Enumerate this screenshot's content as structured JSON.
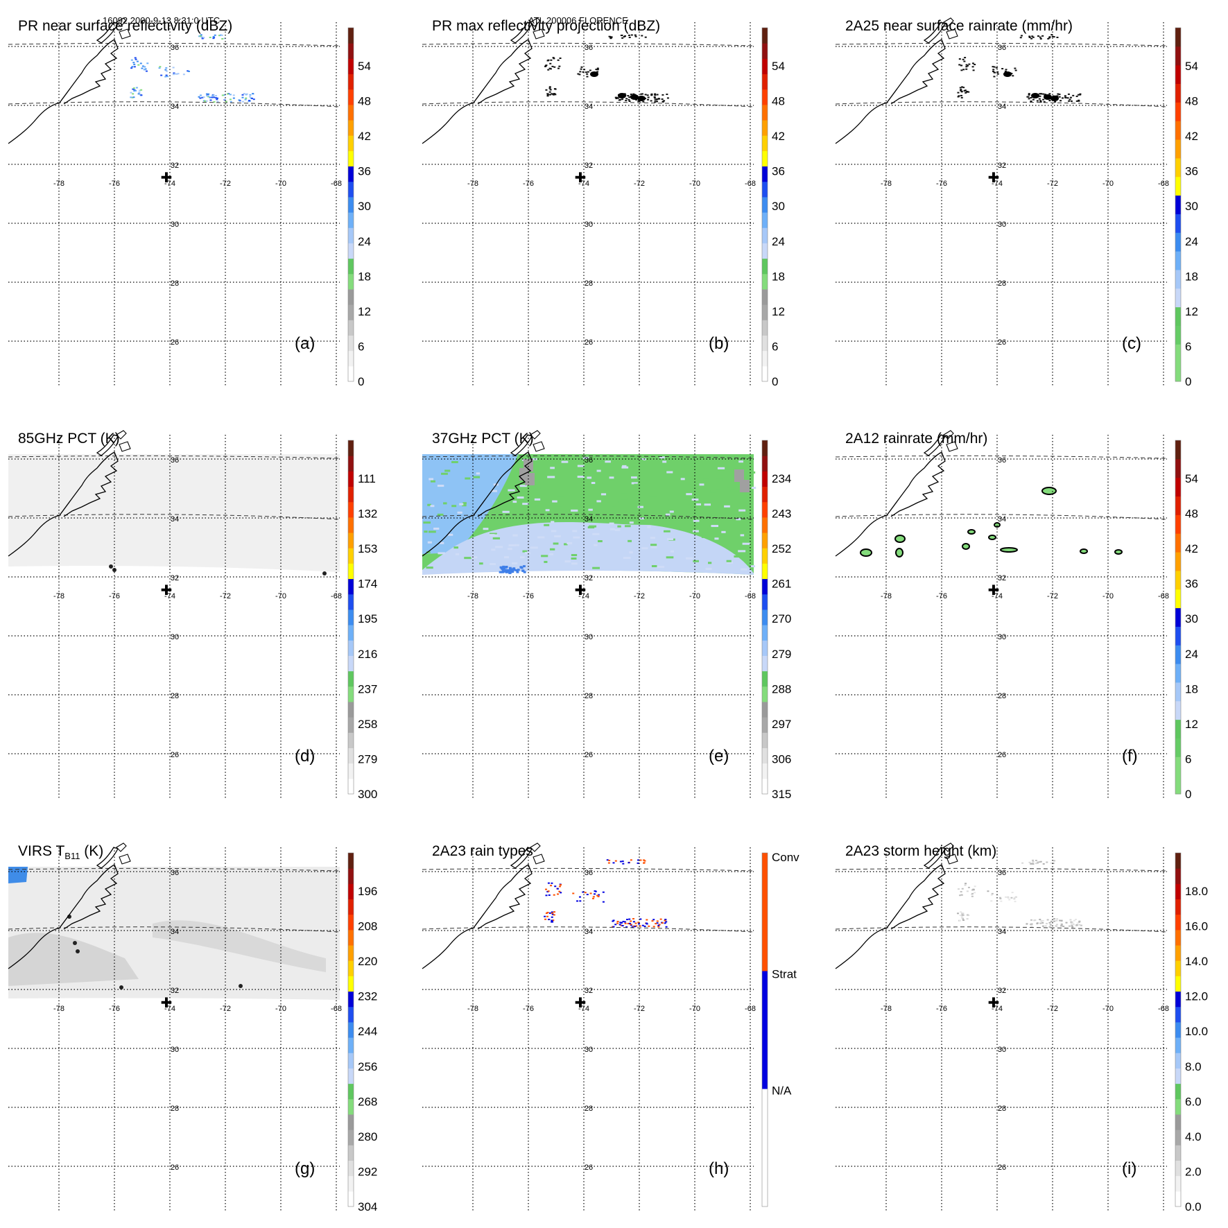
{
  "header": {
    "orbit_time": "16092 2000-9-13 8:31:0 UTC",
    "storm": "ATL 200006 FLORENCE"
  },
  "map": {
    "lon_labels": [
      "-78",
      "-76",
      "-74",
      "-72",
      "-70",
      "-68"
    ],
    "lat_labels": [
      "36",
      "34",
      "32",
      "30",
      "28",
      "26"
    ]
  },
  "panels": [
    {
      "id": "a",
      "title": "PR near surface reflectivity (dBZ)",
      "label": "(a)",
      "field": "pr",
      "colorbar": {
        "ticks": [
          "54",
          "48",
          "42",
          "36",
          "30",
          "24",
          "18",
          "12",
          "6",
          "0"
        ],
        "colors": [
          "#ffffff",
          "#f2f2f2",
          "#e0e0e0",
          "#c8c8c8",
          "#a8a8a8",
          "#9a9a9a",
          "#84dc7c",
          "#5fc75f",
          "#c8d8f8",
          "#a6c8f8",
          "#6eb0f8",
          "#3c8cf0",
          "#1e4ef0",
          "#0000d8",
          "#ffff00",
          "#ffd000",
          "#ffa000",
          "#ff7000",
          "#ff4000",
          "#e02000",
          "#c00000",
          "#901010",
          "#602010"
        ]
      }
    },
    {
      "id": "b",
      "title": "PR max reflectivity projection (dBZ)",
      "label": "(b)",
      "field": "prmax",
      "colorbar": {
        "ticks": [
          "54",
          "48",
          "42",
          "36",
          "30",
          "24",
          "18",
          "12",
          "6",
          "0"
        ],
        "colors": [
          "#ffffff",
          "#f2f2f2",
          "#e0e0e0",
          "#c8c8c8",
          "#a8a8a8",
          "#9a9a9a",
          "#84dc7c",
          "#5fc75f",
          "#c8d8f8",
          "#a6c8f8",
          "#6eb0f8",
          "#3c8cf0",
          "#1e4ef0",
          "#0000d8",
          "#ffff00",
          "#ffd000",
          "#ffa000",
          "#ff7000",
          "#ff4000",
          "#e02000",
          "#c00000",
          "#901010",
          "#602010"
        ]
      }
    },
    {
      "id": "c",
      "title": "2A25 near surface rainrate (mm/hr)",
      "label": "(c)",
      "field": "rain",
      "colorbar": {
        "ticks": [
          "54",
          "48",
          "42",
          "36",
          "30",
          "24",
          "18",
          "12",
          "6",
          "0"
        ],
        "colors": [
          "#84dc7c",
          "#84dc7c",
          "#66cc66",
          "#5fc75f",
          "#c8d8f8",
          "#a6c8f8",
          "#6eb0f8",
          "#3c8cf0",
          "#1e4ef0",
          "#0000d8",
          "#ffff00",
          "#ffd000",
          "#ffa000",
          "#ff7000",
          "#ff4000",
          "#e02000",
          "#c00000",
          "#901010",
          "#602010"
        ]
      }
    },
    {
      "id": "d",
      "title": "85GHz PCT (K)",
      "label": "(d)",
      "field": "pct85",
      "colorbar": {
        "ticks": [
          "111",
          "132",
          "153",
          "174",
          "195",
          "216",
          "237",
          "258",
          "279",
          "300"
        ],
        "colors": [
          "#ffffff",
          "#f2f2f2",
          "#e0e0e0",
          "#c8c8c8",
          "#a8a8a8",
          "#9a9a9a",
          "#84dc7c",
          "#5fc75f",
          "#c8d8f8",
          "#a6c8f8",
          "#6eb0f8",
          "#3c8cf0",
          "#1e4ef0",
          "#0000d8",
          "#ffff00",
          "#ffd000",
          "#ffa000",
          "#ff7000",
          "#ff4000",
          "#e02000",
          "#c00000",
          "#901010",
          "#602010"
        ]
      }
    },
    {
      "id": "e",
      "title": "37GHz PCT (K)",
      "label": "(e)",
      "field": "pct37",
      "colorbar": {
        "ticks": [
          "234",
          "243",
          "252",
          "261",
          "270",
          "279",
          "288",
          "297",
          "306",
          "315"
        ],
        "colors": [
          "#ffffff",
          "#f2f2f2",
          "#e0e0e0",
          "#c8c8c8",
          "#a8a8a8",
          "#9a9a9a",
          "#84dc7c",
          "#5fc75f",
          "#c8d8f8",
          "#a6c8f8",
          "#6eb0f8",
          "#3c8cf0",
          "#1e4ef0",
          "#0000d8",
          "#ffff00",
          "#ffd000",
          "#ffa000",
          "#ff7000",
          "#ff4000",
          "#e02000",
          "#c00000",
          "#901010",
          "#602010"
        ]
      }
    },
    {
      "id": "f",
      "title": "2A12 rainrate (mm/hr)",
      "label": "(f)",
      "field": "rain12",
      "colorbar": {
        "ticks": [
          "54",
          "48",
          "42",
          "36",
          "30",
          "24",
          "18",
          "12",
          "6",
          "0"
        ],
        "colors": [
          "#84dc7c",
          "#84dc7c",
          "#66cc66",
          "#5fc75f",
          "#c8d8f8",
          "#a6c8f8",
          "#6eb0f8",
          "#3c8cf0",
          "#1e4ef0",
          "#0000d8",
          "#ffff00",
          "#ffd000",
          "#ffa000",
          "#ff7000",
          "#ff4000",
          "#e02000",
          "#c00000",
          "#901010",
          "#602010"
        ]
      }
    },
    {
      "id": "g",
      "title_main": "VIRS T",
      "title_sub": "B11",
      "title_unit": " (K)",
      "label": "(g)",
      "field": "virs",
      "colorbar": {
        "ticks": [
          "196",
          "208",
          "220",
          "232",
          "244",
          "256",
          "268",
          "280",
          "292",
          "304"
        ],
        "colors": [
          "#ffffff",
          "#f2f2f2",
          "#e0e0e0",
          "#c8c8c8",
          "#a8a8a8",
          "#9a9a9a",
          "#84dc7c",
          "#5fc75f",
          "#c8d8f8",
          "#a6c8f8",
          "#6eb0f8",
          "#3c8cf0",
          "#1e4ef0",
          "#0000d8",
          "#ffff00",
          "#ffd000",
          "#ffa000",
          "#ff7000",
          "#ff4000",
          "#e02000",
          "#c00000",
          "#901010",
          "#602010"
        ]
      }
    },
    {
      "id": "h",
      "title": "2A23 rain types",
      "label": "(h)",
      "field": "types",
      "colorbar": {
        "ticks": [
          "Conv",
          "Strat",
          "N/A"
        ],
        "colors": [
          "#ffffff",
          "#0000e0",
          "#ff5000"
        ]
      }
    },
    {
      "id": "i",
      "title": "2A23 storm height (km)",
      "label": "(i)",
      "field": "height",
      "colorbar": {
        "ticks": [
          "18.0",
          "16.0",
          "14.0",
          "12.0",
          "10.0",
          "8.0",
          "6.0",
          "4.0",
          "2.0",
          "0.0"
        ],
        "colors": [
          "#ffffff",
          "#f2f2f2",
          "#e0e0e0",
          "#c8c8c8",
          "#a8a8a8",
          "#9a9a9a",
          "#84dc7c",
          "#5fc75f",
          "#c8d8f8",
          "#a6c8f8",
          "#6eb0f8",
          "#3c8cf0",
          "#1e4ef0",
          "#0000d8",
          "#ffff00",
          "#ffd000",
          "#ffa000",
          "#ff7000",
          "#ff4000",
          "#e02000",
          "#c00000",
          "#901010",
          "#602010"
        ]
      }
    }
  ]
}
